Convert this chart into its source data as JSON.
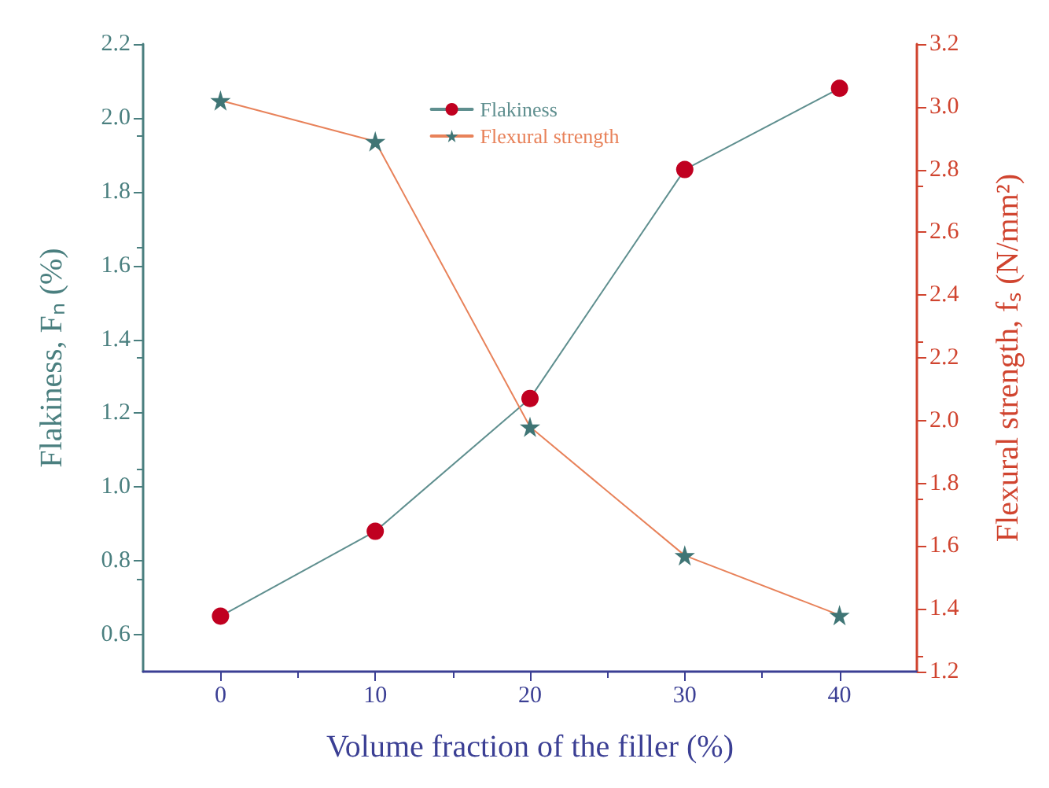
{
  "chart_data": {
    "type": "line",
    "xlabel": "Volume fraction of the filler (%)",
    "ylabel": "Flakiness, Fₙ (%)",
    "y2label": "Flexural strength, fₛ (N/mm²)",
    "x": [
      0,
      10,
      20,
      30,
      40
    ],
    "series": [
      {
        "name": "Flakiness",
        "color": "#5f8f8f",
        "colors": [
          "#c00020",
          "#c00020",
          "#c00020",
          "#c00020",
          "#c00020"
        ],
        "marker": "circle",
        "values": [
          0.65,
          0.88,
          1.24,
          1.86,
          2.08
        ]
      },
      {
        "name": "Flexural strength",
        "color": "#e8825a",
        "colors": [
          "#3f7575",
          "#3f7575",
          "#3f7575",
          "#3f7575",
          "#3f7575"
        ],
        "marker": "star",
        "axis": "y2",
        "values": [
          3.02,
          2.89,
          1.98,
          1.57,
          1.38
        ]
      }
    ],
    "xlim": [
      -5,
      45
    ],
    "xticks": [
      0,
      10,
      20,
      30,
      40
    ],
    "ylim": [
      0.5,
      2.2
    ],
    "yticks": [
      0.6,
      0.8,
      {
        "value": 1,
        "label": "1.0"
      },
      1.2,
      1.4,
      1.6,
      1.8,
      {
        "value": 2,
        "label": "2.0"
      },
      2.2
    ],
    "y2lim": [
      1.2,
      3.2
    ],
    "y2ticks": [
      1.2,
      1.4,
      1.6,
      1.8,
      {
        "value": 2,
        "label": "2.0"
      },
      2.2,
      2.4,
      2.6,
      2.8,
      {
        "value": 3,
        "label": "3.0"
      },
      3.2
    ],
    "legend": "top",
    "grid": false,
    "line_style": "solid"
  }
}
